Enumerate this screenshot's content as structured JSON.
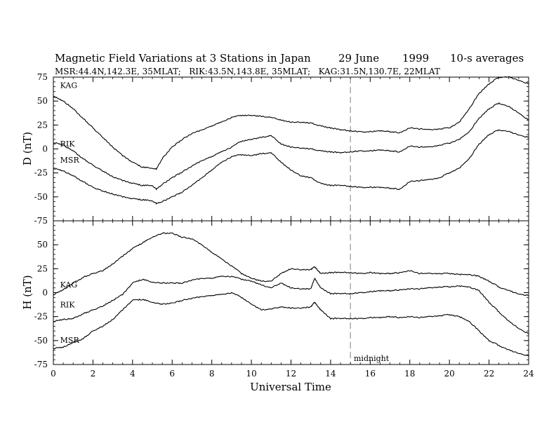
{
  "header": {
    "title": "Magnetic Field Variations at 3 Stations in Japan",
    "date": "29 June",
    "year": "1999",
    "averaging": "10-s averages",
    "stations": "MSR:44.4N,142.3E, 35MLAT;   RIK:43.5N,143.8E, 35MLAT;   KAG:31.5N,130.7E, 22MLAT"
  },
  "chart_data": [
    {
      "type": "line",
      "ylabel": "D (nT)",
      "xlim": [
        0,
        24
      ],
      "ylim": [
        -75,
        75
      ],
      "yticks": [
        "75",
        "50",
        "25",
        "0",
        "-25",
        "-50",
        "-75"
      ],
      "grid": false,
      "series": [
        {
          "name": "KAG",
          "x": [
            0,
            0.5,
            1,
            1.5,
            2,
            2.5,
            3,
            3.5,
            4,
            4.5,
            5,
            5.2,
            5.5,
            6,
            6.5,
            7,
            7.5,
            8,
            8.5,
            9,
            9.5,
            10,
            10.5,
            11,
            11.5,
            12,
            12.5,
            13,
            13.5,
            14,
            14.5,
            15,
            15.5,
            16,
            16.5,
            17,
            17.5,
            18,
            18.5,
            19,
            19.5,
            20,
            20.5,
            21,
            21.5,
            22,
            22.5,
            23,
            23.5,
            24
          ],
          "values": [
            55,
            50,
            42,
            32,
            22,
            12,
            2,
            -7,
            -14,
            -19,
            -20,
            -21,
            -10,
            2,
            10,
            16,
            20,
            24,
            28,
            33,
            35,
            35,
            34,
            33,
            30,
            28,
            28,
            27,
            24,
            22,
            20,
            19,
            18,
            18,
            19,
            18,
            17,
            22,
            21,
            20,
            21,
            22,
            28,
            42,
            58,
            68,
            75,
            75,
            72,
            68
          ]
        },
        {
          "name": "RIK",
          "x": [
            0,
            0.5,
            1,
            1.5,
            2,
            2.5,
            3,
            3.5,
            4,
            4.5,
            5,
            5.2,
            5.5,
            6,
            6.5,
            7,
            7.5,
            8,
            8.5,
            9,
            9.5,
            10,
            10.5,
            11,
            11.5,
            12,
            12.5,
            13,
            13.5,
            14,
            14.5,
            15,
            15.5,
            16,
            16.5,
            17,
            17.5,
            18,
            18.5,
            19,
            19.5,
            20,
            20.5,
            21,
            21.5,
            22,
            22.5,
            23,
            23.5,
            24
          ],
          "values": [
            7,
            4,
            -2,
            -10,
            -17,
            -23,
            -29,
            -33,
            -36,
            -38,
            -38,
            -42,
            -37,
            -30,
            -24,
            -18,
            -12,
            -8,
            -3,
            2,
            8,
            10,
            12,
            14,
            5,
            2,
            1,
            0,
            -2,
            -3,
            -4,
            -3,
            -2,
            -2,
            -1,
            -2,
            -3,
            3,
            2,
            2,
            4,
            6,
            10,
            18,
            32,
            42,
            48,
            44,
            38,
            30
          ]
        },
        {
          "name": "MSR",
          "x": [
            0,
            0.5,
            1,
            1.5,
            2,
            2.5,
            3,
            3.5,
            4,
            4.5,
            5,
            5.2,
            5.5,
            6,
            6.5,
            7,
            7.5,
            8,
            8.5,
            9,
            9.5,
            10,
            10.5,
            11,
            11.5,
            12,
            12.5,
            13,
            13.5,
            14,
            14.5,
            15,
            15.5,
            16,
            16.5,
            17,
            17.5,
            18,
            18.5,
            19,
            19.5,
            20,
            20.5,
            21,
            21.5,
            22,
            22.5,
            23,
            23.5,
            24
          ],
          "values": [
            -20,
            -23,
            -28,
            -34,
            -40,
            -44,
            -47,
            -50,
            -52,
            -53,
            -54,
            -57,
            -55,
            -50,
            -45,
            -38,
            -30,
            -22,
            -14,
            -8,
            -6,
            -7,
            -5,
            -4,
            -14,
            -22,
            -28,
            -30,
            -36,
            -38,
            -38,
            -39,
            -40,
            -40,
            -40,
            -41,
            -42,
            -34,
            -33,
            -32,
            -30,
            -25,
            -20,
            -10,
            5,
            15,
            20,
            18,
            15,
            12
          ]
        }
      ]
    },
    {
      "type": "line",
      "ylabel": "H (nT)",
      "xlabel": "Universal Time",
      "xlim": [
        0,
        24
      ],
      "ylim": [
        -75,
        75
      ],
      "xticks": [
        "0",
        "2",
        "4",
        "6",
        "8",
        "10",
        "12",
        "14",
        "16",
        "18",
        "20",
        "22",
        "24"
      ],
      "yticks": [
        "50",
        "25",
        "0",
        "-25",
        "-50",
        "-75"
      ],
      "grid": false,
      "annotations": [
        {
          "text": "midnight",
          "x": 15
        }
      ],
      "series": [
        {
          "name": "KAG",
          "x": [
            0,
            0.5,
            1,
            1.5,
            2,
            2.5,
            3,
            3.5,
            4,
            4.5,
            5,
            5.5,
            6,
            6.5,
            7,
            7.5,
            8,
            8.5,
            9,
            9.5,
            10,
            10.5,
            11,
            11.5,
            12,
            12.5,
            13,
            13.2,
            13.5,
            14,
            14.5,
            15,
            15.5,
            16,
            16.5,
            17,
            17.5,
            18,
            18.5,
            19,
            19.5,
            20,
            20.5,
            21,
            21.5,
            22,
            22.5,
            23,
            23.5,
            24
          ],
          "values": [
            -2,
            3,
            10,
            16,
            20,
            23,
            30,
            38,
            46,
            52,
            58,
            62,
            62,
            58,
            56,
            50,
            42,
            35,
            28,
            20,
            15,
            12,
            12,
            20,
            25,
            24,
            24,
            27,
            20,
            21,
            21,
            21,
            20,
            21,
            20,
            20,
            21,
            23,
            20,
            20,
            20,
            20,
            19,
            19,
            17,
            12,
            6,
            2,
            -1,
            -3
          ]
        },
        {
          "name": "RIK",
          "x": [
            0,
            0.5,
            1,
            1.5,
            2,
            2.5,
            3,
            3.5,
            4,
            4.5,
            5,
            5.5,
            6,
            6.5,
            7,
            7.5,
            8,
            8.5,
            9,
            9.5,
            10,
            10.5,
            11,
            11.5,
            12,
            12.5,
            13,
            13.2,
            13.5,
            14,
            14.5,
            15,
            15.5,
            16,
            16.5,
            17,
            17.5,
            18,
            18.5,
            19,
            19.5,
            20,
            20.5,
            21,
            21.5,
            22,
            22.5,
            23,
            23.5,
            24
          ],
          "values": [
            -30,
            -28,
            -27,
            -22,
            -18,
            -14,
            -8,
            -2,
            10,
            14,
            11,
            10,
            10,
            10,
            13,
            15,
            15,
            17,
            17,
            14,
            12,
            8,
            5,
            10,
            5,
            4,
            4,
            15,
            5,
            -1,
            -1,
            -1,
            0,
            1,
            2,
            2,
            3,
            4,
            4,
            5,
            6,
            6,
            7,
            6,
            2,
            -10,
            -20,
            -30,
            -37,
            -43
          ]
        },
        {
          "name": "MSR",
          "x": [
            0,
            0.5,
            1,
            1.5,
            2,
            2.5,
            3,
            3.5,
            4,
            4.5,
            5,
            5.5,
            6,
            6.5,
            7,
            7.5,
            8,
            8.5,
            9,
            9.5,
            10,
            10.5,
            11,
            11.5,
            12,
            12.5,
            13,
            13.2,
            13.5,
            14,
            14.5,
            15,
            15.5,
            16,
            16.5,
            17,
            17.5,
            18,
            18.5,
            19,
            19.5,
            20,
            20.5,
            21,
            21.5,
            22,
            22.5,
            23,
            23.5,
            24
          ],
          "values": [
            -58,
            -57,
            -52,
            -48,
            -40,
            -35,
            -28,
            -18,
            -8,
            -7,
            -10,
            -12,
            -11,
            -8,
            -6,
            -4,
            -3,
            -2,
            0,
            -5,
            -12,
            -18,
            -17,
            -15,
            -16,
            -16,
            -15,
            -10,
            -18,
            -27,
            -27,
            -27,
            -27,
            -26,
            -26,
            -25,
            -26,
            -25,
            -26,
            -25,
            -24,
            -23,
            -25,
            -30,
            -40,
            -50,
            -55,
            -60,
            -63,
            -66
          ]
        }
      ]
    }
  ]
}
